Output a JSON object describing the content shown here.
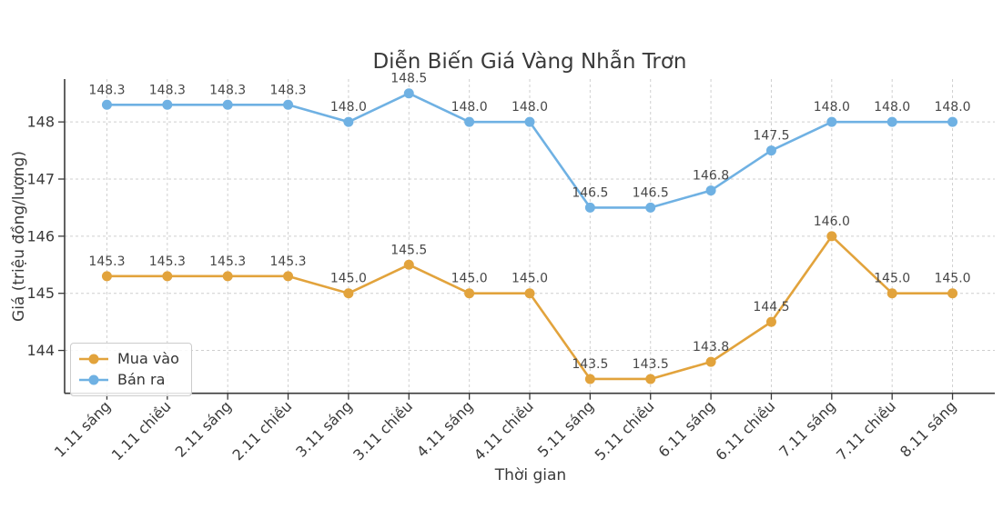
{
  "chart_data": {
    "type": "line",
    "title": "Diễn Biến Giá Vàng Nhẫn Trơn",
    "xlabel": "Thời gian",
    "ylabel": "Giá (triệu đồng/lượng)",
    "categories": [
      "1.11 sáng",
      "1.11 chiều",
      "2.11 sáng",
      "2.11 chiều",
      "3.11 sáng",
      "3.11 chiều",
      "4.11 sáng",
      "4.11 chiều",
      "5.11 sáng",
      "5.11 chiều",
      "6.11 sáng",
      "6.11 chiều",
      "7.11 sáng",
      "7.11 chiều",
      "8.11 sáng"
    ],
    "series": [
      {
        "name": "Mua vào",
        "color": "#e2a33c",
        "values": [
          145.3,
          145.3,
          145.3,
          145.3,
          145.0,
          145.5,
          145.0,
          145.0,
          143.5,
          143.5,
          143.8,
          144.5,
          146.0,
          145.0,
          145.0
        ]
      },
      {
        "name": "Bán ra",
        "color": "#6fb1e3",
        "values": [
          148.3,
          148.3,
          148.3,
          148.3,
          148.0,
          148.5,
          148.0,
          148.0,
          146.5,
          146.5,
          146.8,
          147.5,
          148.0,
          148.0,
          148.0
        ]
      }
    ],
    "yticks": [
      144,
      145,
      146,
      147,
      148
    ],
    "ylim": [
      143.25,
      148.75
    ],
    "grid": true,
    "grid_style": "dashed",
    "xtick_rotation": 45,
    "legend_position": "lower left",
    "data_labels": true,
    "colors": {
      "background": "#ffffff",
      "grid": "#cfcfcf",
      "axis": "#3a3a3a",
      "title_text": "#3a3a3a",
      "tick_text": "#3a3a3a",
      "data_label_text": "#474747"
    }
  }
}
